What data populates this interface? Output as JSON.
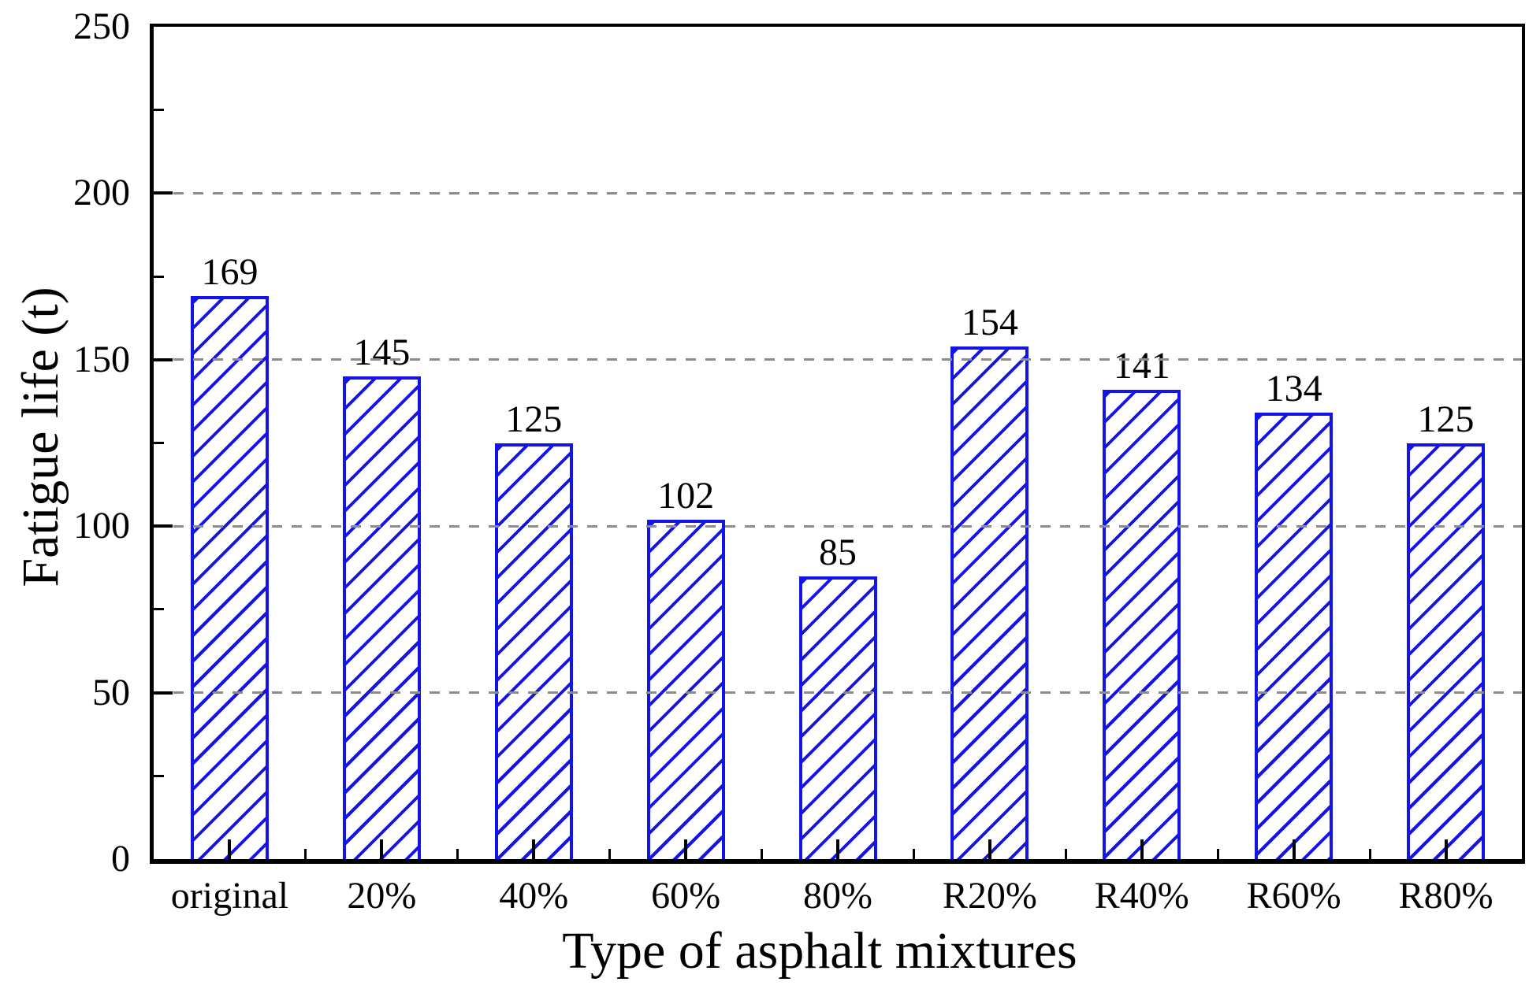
{
  "chart_data": {
    "type": "bar",
    "title": "",
    "xlabel": "Type of asphalt mixtures",
    "ylabel": "Fatigue life (t)",
    "categories": [
      "original",
      "20%",
      "40%",
      "60%",
      "80%",
      "R20%",
      "R40%",
      "R60%",
      "R80%"
    ],
    "values": [
      169,
      145,
      125,
      102,
      85,
      154,
      141,
      134,
      125
    ],
    "bar_value_labels": [
      "169",
      "145",
      "125",
      "102",
      "85",
      "154",
      "141",
      "134",
      "125"
    ],
    "ylim": [
      0,
      250
    ],
    "y_major_ticks": [
      0,
      50,
      100,
      150,
      200,
      250
    ],
    "y_minor_ticks": [
      25,
      75,
      125,
      175,
      225
    ],
    "gridline_values": [
      50,
      100,
      150,
      200
    ],
    "grid_style": "dashed",
    "grid_on": true,
    "legend": null,
    "bar_style": {
      "fill": "#ffffff",
      "hatch": "diagonal-forward",
      "edge_color": "#1414e6",
      "hatch_color": "#1414e6"
    },
    "colors": {
      "axis": "#000000",
      "grid": "#8c8c8c",
      "text": "#000000"
    }
  }
}
